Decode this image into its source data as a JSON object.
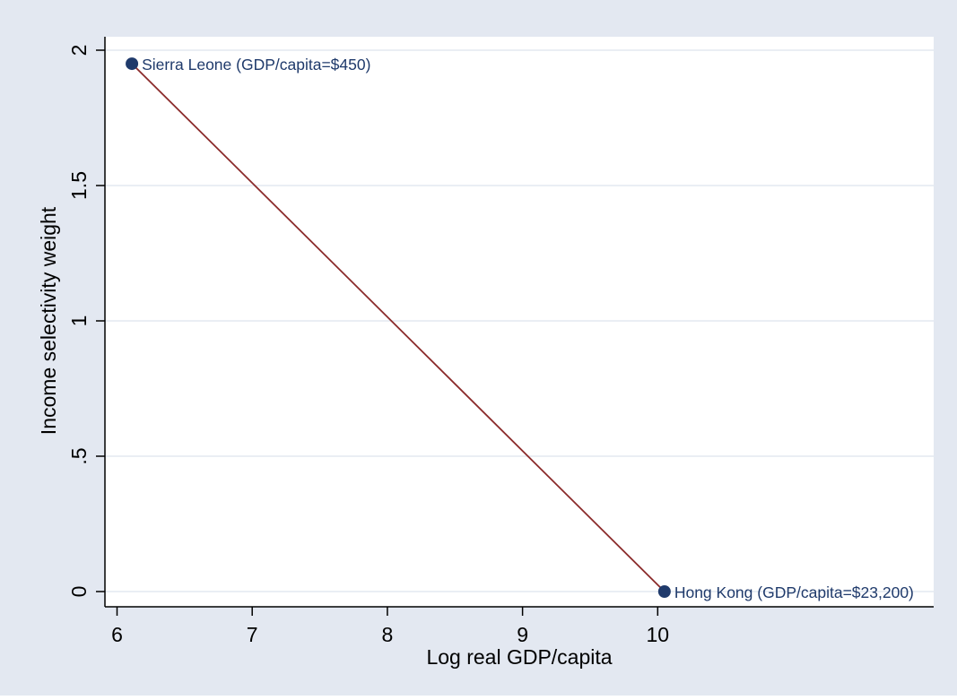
{
  "chart_data": {
    "type": "scatter",
    "title": "",
    "xlabel": "Log real GDP/capita",
    "ylabel": "Income selectivity weight",
    "xlim": [
      5.93,
      12.07
    ],
    "ylim": [
      -0.1,
      2.1
    ],
    "xticks": [
      6,
      7,
      8,
      9,
      10
    ],
    "xtick_labels": [
      "6",
      "7",
      "8",
      "9",
      "10"
    ],
    "yticks": [
      0,
      0.5,
      1,
      1.5,
      2
    ],
    "ytick_labels": [
      "0",
      ".5",
      "1",
      "1.5",
      "2"
    ],
    "grid": "horizontal",
    "legend": "none",
    "series": [
      {
        "type": "line",
        "color": "#8b2b2b",
        "points": [
          {
            "x": 6.11,
            "y": 1.95
          },
          {
            "x": 10.05,
            "y": 0
          }
        ]
      },
      {
        "type": "scatter",
        "color": "#1f3a6b",
        "points": [
          {
            "x": 6.11,
            "y": 1.95,
            "label": "Sierra Leone (GDP/capita=$450)"
          },
          {
            "x": 10.05,
            "y": 0,
            "label": "Hong Kong (GDP/capita=$23,200)"
          }
        ]
      }
    ],
    "colors": {
      "outer_background": "#e3e8f1",
      "plot_background": "#ffffff",
      "gridline": "#e4e9f1",
      "axis": "#000000",
      "text": "#000000",
      "marker_label": "#1f3a6b"
    }
  }
}
